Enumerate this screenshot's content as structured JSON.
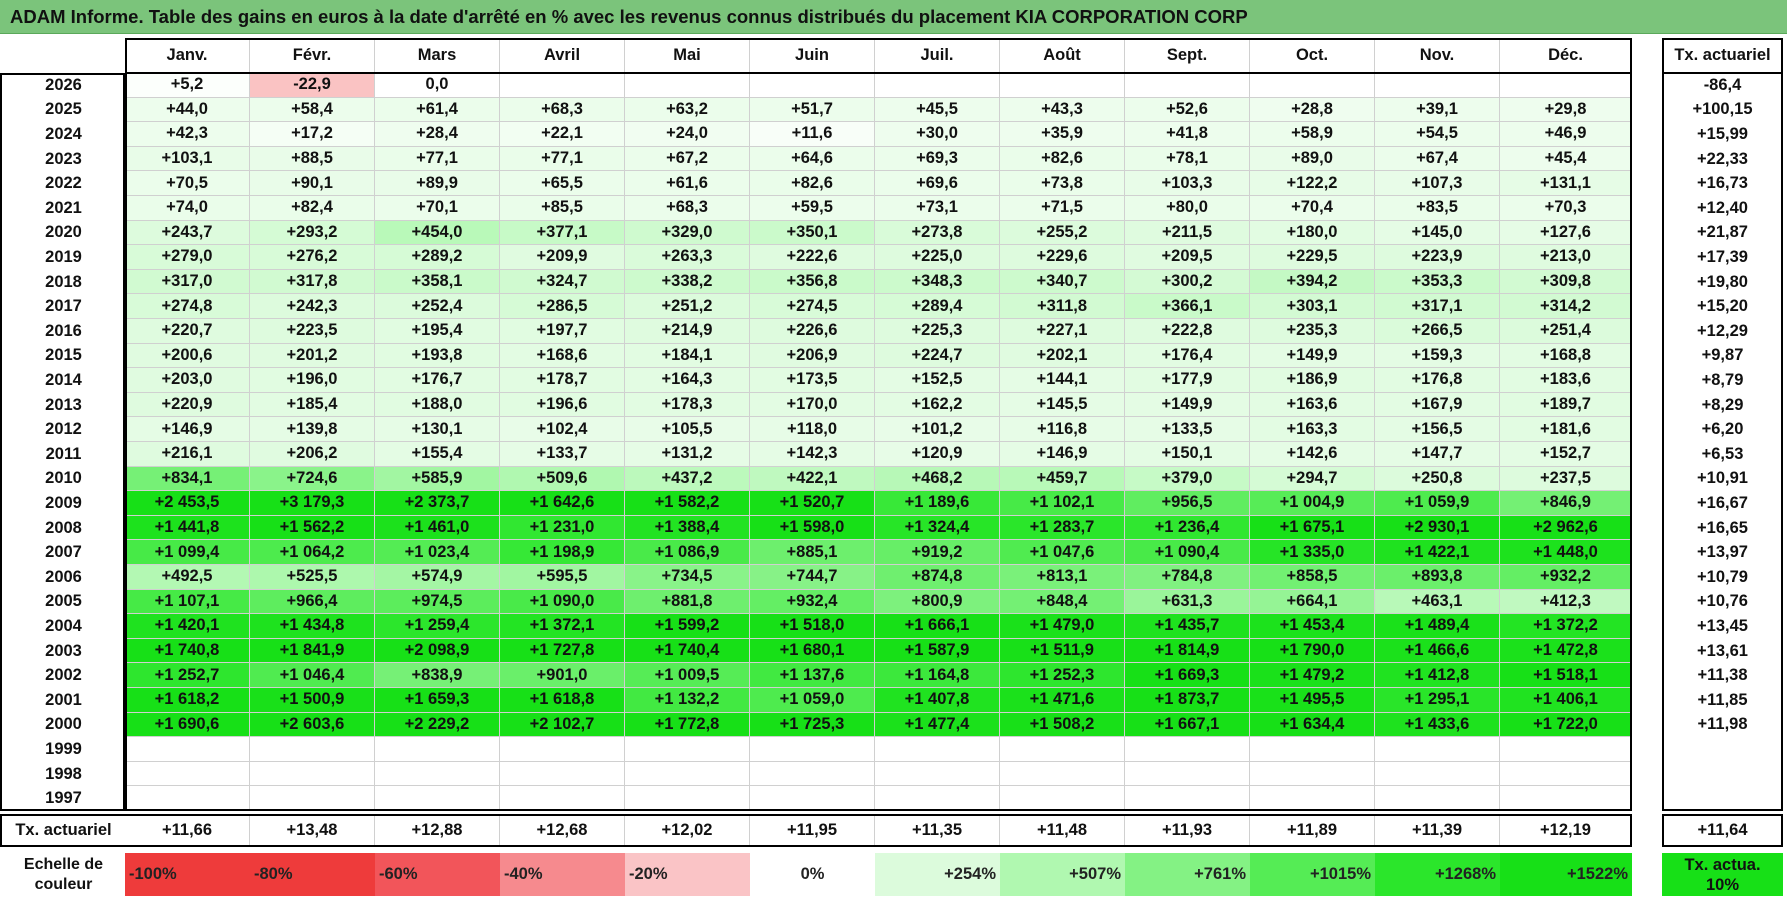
{
  "title": "ADAM Informe. Table des gains en euros à la date d'arrêté en % avec les revenus connus distribués du placement KIA CORPORATION CORP",
  "chart_data": {
    "type": "table",
    "columns": [
      "Janv.",
      "Févr.",
      "Mars",
      "Avril",
      "Mai",
      "Juin",
      "Juil.",
      "Août",
      "Sept.",
      "Oct.",
      "Nov.",
      "Déc."
    ],
    "annual_header": "Tx. actuariel",
    "rows": [
      {
        "year": "2026",
        "values": [
          "+5,2",
          "-22,9",
          "0,0",
          "",
          "",
          "",
          "",
          "",
          "",
          "",
          "",
          ""
        ],
        "annual": "-86,4"
      },
      {
        "year": "2025",
        "values": [
          "+44,0",
          "+58,4",
          "+61,4",
          "+68,3",
          "+63,2",
          "+51,7",
          "+45,5",
          "+43,3",
          "+52,6",
          "+28,8",
          "+39,1",
          "+29,8"
        ],
        "annual": "+100,15"
      },
      {
        "year": "2024",
        "values": [
          "+42,3",
          "+17,2",
          "+28,4",
          "+22,1",
          "+24,0",
          "+11,6",
          "+30,0",
          "+35,9",
          "+41,8",
          "+58,9",
          "+54,5",
          "+46,9"
        ],
        "annual": "+15,99"
      },
      {
        "year": "2023",
        "values": [
          "+103,1",
          "+88,5",
          "+77,1",
          "+77,1",
          "+67,2",
          "+64,6",
          "+69,3",
          "+82,6",
          "+78,1",
          "+89,0",
          "+67,4",
          "+45,4"
        ],
        "annual": "+22,33"
      },
      {
        "year": "2022",
        "values": [
          "+70,5",
          "+90,1",
          "+89,9",
          "+65,5",
          "+61,6",
          "+82,6",
          "+69,6",
          "+73,8",
          "+103,3",
          "+122,2",
          "+107,3",
          "+131,1"
        ],
        "annual": "+16,73"
      },
      {
        "year": "2021",
        "values": [
          "+74,0",
          "+82,4",
          "+70,1",
          "+85,5",
          "+68,3",
          "+59,5",
          "+73,1",
          "+71,5",
          "+80,0",
          "+70,4",
          "+83,5",
          "+70,3"
        ],
        "annual": "+12,40"
      },
      {
        "year": "2020",
        "values": [
          "+243,7",
          "+293,2",
          "+454,0",
          "+377,1",
          "+329,0",
          "+350,1",
          "+273,8",
          "+255,2",
          "+211,5",
          "+180,0",
          "+145,0",
          "+127,6"
        ],
        "annual": "+21,87"
      },
      {
        "year": "2019",
        "values": [
          "+279,0",
          "+276,2",
          "+289,2",
          "+209,9",
          "+263,3",
          "+222,6",
          "+225,0",
          "+229,6",
          "+209,5",
          "+229,5",
          "+223,9",
          "+213,0"
        ],
        "annual": "+17,39"
      },
      {
        "year": "2018",
        "values": [
          "+317,0",
          "+317,8",
          "+358,1",
          "+324,7",
          "+338,2",
          "+356,8",
          "+348,3",
          "+340,7",
          "+300,2",
          "+394,2",
          "+353,3",
          "+309,8"
        ],
        "annual": "+19,80"
      },
      {
        "year": "2017",
        "values": [
          "+274,8",
          "+242,3",
          "+252,4",
          "+286,5",
          "+251,2",
          "+274,5",
          "+289,4",
          "+311,8",
          "+366,1",
          "+303,1",
          "+317,1",
          "+314,2"
        ],
        "annual": "+15,20"
      },
      {
        "year": "2016",
        "values": [
          "+220,7",
          "+223,5",
          "+195,4",
          "+197,7",
          "+214,9",
          "+226,6",
          "+225,3",
          "+227,1",
          "+222,8",
          "+235,3",
          "+266,5",
          "+251,4"
        ],
        "annual": "+12,29"
      },
      {
        "year": "2015",
        "values": [
          "+200,6",
          "+201,2",
          "+193,8",
          "+168,6",
          "+184,1",
          "+206,9",
          "+224,7",
          "+202,1",
          "+176,4",
          "+149,9",
          "+159,3",
          "+168,8"
        ],
        "annual": "+9,87"
      },
      {
        "year": "2014",
        "values": [
          "+203,0",
          "+196,0",
          "+176,7",
          "+178,7",
          "+164,3",
          "+173,5",
          "+152,5",
          "+144,1",
          "+177,9",
          "+186,9",
          "+176,8",
          "+183,6"
        ],
        "annual": "+8,79"
      },
      {
        "year": "2013",
        "values": [
          "+220,9",
          "+185,4",
          "+188,0",
          "+196,6",
          "+178,3",
          "+170,0",
          "+162,2",
          "+145,5",
          "+149,9",
          "+163,6",
          "+167,9",
          "+189,7"
        ],
        "annual": "+8,29"
      },
      {
        "year": "2012",
        "values": [
          "+146,9",
          "+139,8",
          "+130,1",
          "+102,4",
          "+105,5",
          "+118,0",
          "+101,2",
          "+116,8",
          "+133,5",
          "+163,3",
          "+156,5",
          "+181,6"
        ],
        "annual": "+6,20"
      },
      {
        "year": "2011",
        "values": [
          "+216,1",
          "+206,2",
          "+155,4",
          "+133,7",
          "+131,2",
          "+142,3",
          "+120,9",
          "+146,9",
          "+150,1",
          "+142,6",
          "+147,7",
          "+152,7"
        ],
        "annual": "+6,53"
      },
      {
        "year": "2010",
        "values": [
          "+834,1",
          "+724,6",
          "+585,9",
          "+509,6",
          "+437,2",
          "+422,1",
          "+468,2",
          "+459,7",
          "+379,0",
          "+294,7",
          "+250,8",
          "+237,5"
        ],
        "annual": "+10,91"
      },
      {
        "year": "2009",
        "values": [
          "+2 453,5",
          "+3 179,3",
          "+2 373,7",
          "+1 642,6",
          "+1 582,2",
          "+1 520,7",
          "+1 189,6",
          "+1 102,1",
          "+956,5",
          "+1 004,9",
          "+1 059,9",
          "+846,9"
        ],
        "annual": "+16,67"
      },
      {
        "year": "2008",
        "values": [
          "+1 441,8",
          "+1 562,2",
          "+1 461,0",
          "+1 231,0",
          "+1 388,4",
          "+1 598,0",
          "+1 324,4",
          "+1 283,7",
          "+1 236,4",
          "+1 675,1",
          "+2 930,1",
          "+2 962,6"
        ],
        "annual": "+16,65"
      },
      {
        "year": "2007",
        "values": [
          "+1 099,4",
          "+1 064,2",
          "+1 023,4",
          "+1 198,9",
          "+1 086,9",
          "+885,1",
          "+919,2",
          "+1 047,6",
          "+1 090,4",
          "+1 335,0",
          "+1 422,1",
          "+1 448,0"
        ],
        "annual": "+13,97"
      },
      {
        "year": "2006",
        "values": [
          "+492,5",
          "+525,5",
          "+574,9",
          "+595,5",
          "+734,5",
          "+744,7",
          "+874,8",
          "+813,1",
          "+784,8",
          "+858,5",
          "+893,8",
          "+932,2"
        ],
        "annual": "+10,79"
      },
      {
        "year": "2005",
        "values": [
          "+1 107,1",
          "+966,4",
          "+974,5",
          "+1 090,0",
          "+881,8",
          "+932,4",
          "+800,9",
          "+848,4",
          "+631,3",
          "+664,1",
          "+463,1",
          "+412,3"
        ],
        "annual": "+10,76"
      },
      {
        "year": "2004",
        "values": [
          "+1 420,1",
          "+1 434,8",
          "+1 259,4",
          "+1 372,1",
          "+1 599,2",
          "+1 518,0",
          "+1 666,1",
          "+1 479,0",
          "+1 435,7",
          "+1 453,4",
          "+1 489,4",
          "+1 372,2"
        ],
        "annual": "+13,45"
      },
      {
        "year": "2003",
        "values": [
          "+1 740,8",
          "+1 841,9",
          "+2 098,9",
          "+1 727,8",
          "+1 740,4",
          "+1 680,1",
          "+1 587,9",
          "+1 511,9",
          "+1 814,9",
          "+1 790,0",
          "+1 466,6",
          "+1 472,8"
        ],
        "annual": "+13,61"
      },
      {
        "year": "2002",
        "values": [
          "+1 252,7",
          "+1 046,4",
          "+838,9",
          "+901,0",
          "+1 009,5",
          "+1 137,6",
          "+1 164,8",
          "+1 252,3",
          "+1 669,3",
          "+1 479,2",
          "+1 412,8",
          "+1 518,1"
        ],
        "annual": "+11,38"
      },
      {
        "year": "2001",
        "values": [
          "+1 618,2",
          "+1 500,9",
          "+1 659,3",
          "+1 618,8",
          "+1 132,2",
          "+1 059,0",
          "+1 407,8",
          "+1 471,6",
          "+1 873,7",
          "+1 495,5",
          "+1 295,1",
          "+1 406,1"
        ],
        "annual": "+11,85"
      },
      {
        "year": "2000",
        "values": [
          "+1 690,6",
          "+2 603,6",
          "+2 229,2",
          "+2 102,7",
          "+1 772,8",
          "+1 725,3",
          "+1 477,4",
          "+1 508,2",
          "+1 667,1",
          "+1 634,4",
          "+1 433,6",
          "+1 722,0"
        ],
        "annual": "+11,98"
      },
      {
        "year": "1999",
        "values": [
          "",
          "",
          "",
          "",
          "",
          "",
          "",
          "",
          "",
          "",
          "",
          ""
        ],
        "annual": ""
      },
      {
        "year": "1998",
        "values": [
          "",
          "",
          "",
          "",
          "",
          "",
          "",
          "",
          "",
          "",
          "",
          ""
        ],
        "annual": ""
      },
      {
        "year": "1997",
        "values": [
          "",
          "",
          "",
          "",
          "",
          "",
          "",
          "",
          "",
          "",
          "",
          ""
        ],
        "annual": ""
      }
    ],
    "footer": {
      "label": "Tx. actuariel",
      "values": [
        "+11,66",
        "+13,48",
        "+12,88",
        "+12,68",
        "+12,02",
        "+11,95",
        "+11,35",
        "+11,48",
        "+11,93",
        "+11,89",
        "+11,39",
        "+12,19"
      ],
      "annual": "+11,64"
    }
  },
  "legend": {
    "label": "Echelle de couleur",
    "items": [
      {
        "text": "-100%",
        "color": "#ee3b3b",
        "align": "left"
      },
      {
        "text": "-80%",
        "color": "#ee3b3b",
        "align": "left"
      },
      {
        "text": "-60%",
        "color": "#f2555a",
        "align": "left"
      },
      {
        "text": "-40%",
        "color": "#f68a8e",
        "align": "left"
      },
      {
        "text": "-20%",
        "color": "#fac4c6",
        "align": "left"
      },
      {
        "text": "0%",
        "color": "#ffffff",
        "align": "center"
      },
      {
        "text": "+254%",
        "color": "#dcfbdc",
        "align": "right"
      },
      {
        "text": "+507%",
        "color": "#b0f8b0",
        "align": "right"
      },
      {
        "text": "+761%",
        "color": "#84f284",
        "align": "right"
      },
      {
        "text": "+1015%",
        "color": "#55ec55",
        "align": "right"
      },
      {
        "text": "+1268%",
        "color": "#2be62b",
        "align": "right"
      },
      {
        "text": "+1522%",
        "color": "#17e017",
        "align": "right"
      }
    ],
    "annual_label": "Tx. actua. 10%",
    "annual_color": "#17e017"
  }
}
